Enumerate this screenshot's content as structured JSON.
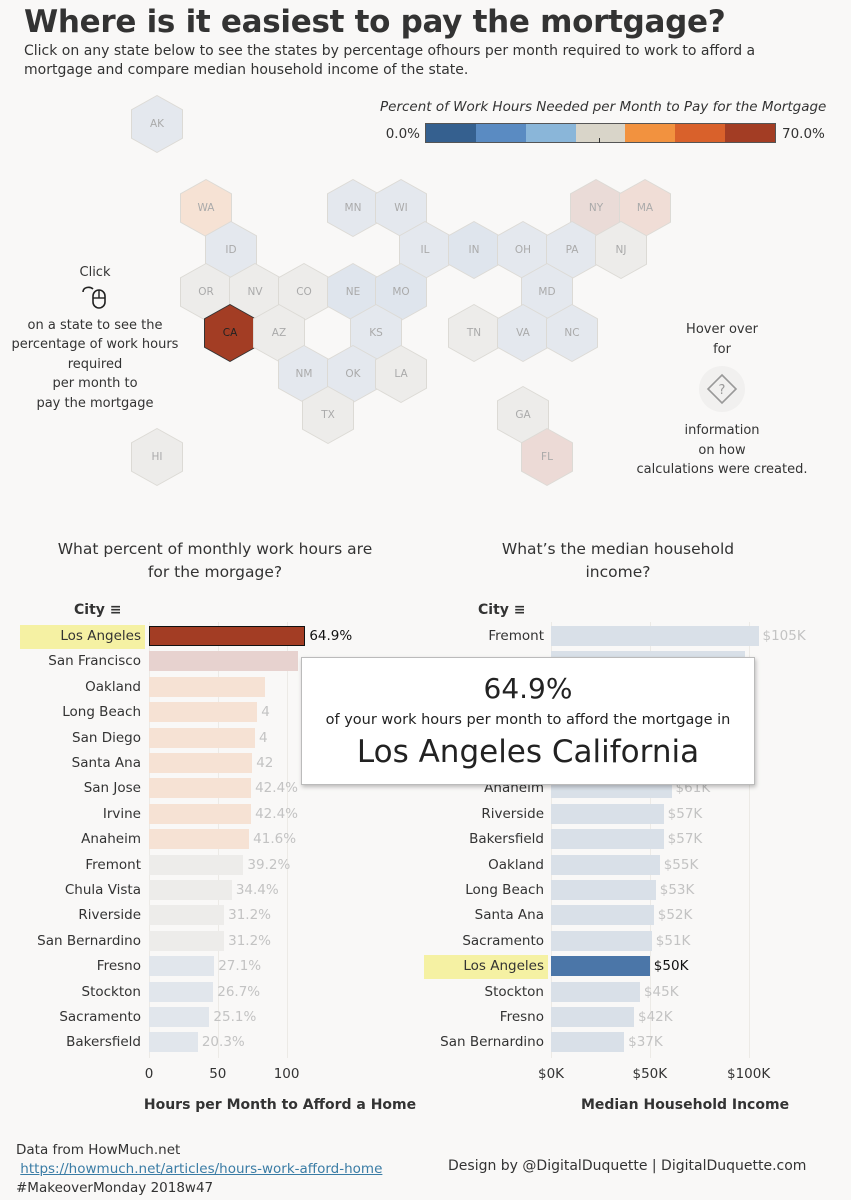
{
  "header": {
    "title": "Where is it easiest to pay the mortgage?",
    "subtitle": "Click on any state below to see the states by percentage ofhours per month required to work to afford a mortgage and compare median household income of the state."
  },
  "legend": {
    "title": "Percent of Work Hours Needed per Month to Pay for the Mortgage",
    "min_label": "0.0%",
    "max_label": "70.0%",
    "colors": [
      "#35608f",
      "#5a8bc2",
      "#8ab6d9",
      "#d9d5c9",
      "#f2923f",
      "#d9612b",
      "#a33d24"
    ]
  },
  "map": {
    "states": [
      {
        "abbr": "AK",
        "color": "#e4e8ee",
        "selected": false
      },
      {
        "abbr": "WA",
        "color": "#f6e2d4",
        "selected": false
      },
      {
        "abbr": "MN",
        "color": "#e4e8ee",
        "selected": false
      },
      {
        "abbr": "WI",
        "color": "#e4e8ee",
        "selected": false
      },
      {
        "abbr": "NY",
        "color": "#eadbd7",
        "selected": false
      },
      {
        "abbr": "MA",
        "color": "#f0ddd6",
        "selected": false
      },
      {
        "abbr": "ID",
        "color": "#e4e8ee",
        "selected": false
      },
      {
        "abbr": "IL",
        "color": "#e4e8ee",
        "selected": false
      },
      {
        "abbr": "IN",
        "color": "#dfe5ed",
        "selected": false
      },
      {
        "abbr": "OH",
        "color": "#e4e8ee",
        "selected": false
      },
      {
        "abbr": "PA",
        "color": "#e4e8ee",
        "selected": false
      },
      {
        "abbr": "NJ",
        "color": "#edecea",
        "selected": false
      },
      {
        "abbr": "OR",
        "color": "#edecea",
        "selected": false
      },
      {
        "abbr": "NV",
        "color": "#edecea",
        "selected": false
      },
      {
        "abbr": "CO",
        "color": "#edecea",
        "selected": false
      },
      {
        "abbr": "NE",
        "color": "#dfe5ed",
        "selected": false
      },
      {
        "abbr": "MO",
        "color": "#dfe5ed",
        "selected": false
      },
      {
        "abbr": "MD",
        "color": "#e4e8ee",
        "selected": false
      },
      {
        "abbr": "CA",
        "color": "#a33d24",
        "selected": true
      },
      {
        "abbr": "AZ",
        "color": "#edecea",
        "selected": false
      },
      {
        "abbr": "KS",
        "color": "#e4e8ee",
        "selected": false
      },
      {
        "abbr": "TN",
        "color": "#edecea",
        "selected": false
      },
      {
        "abbr": "VA",
        "color": "#e4e8ee",
        "selected": false
      },
      {
        "abbr": "NC",
        "color": "#e4e8ee",
        "selected": false
      },
      {
        "abbr": "NM",
        "color": "#e4e8ee",
        "selected": false
      },
      {
        "abbr": "OK",
        "color": "#e4e8ee",
        "selected": false
      },
      {
        "abbr": "LA",
        "color": "#edecea",
        "selected": false
      },
      {
        "abbr": "TX",
        "color": "#edecea",
        "selected": false
      },
      {
        "abbr": "GA",
        "color": "#edecea",
        "selected": false
      },
      {
        "abbr": "HI",
        "color": "#edecea",
        "selected": false
      },
      {
        "abbr": "FL",
        "color": "#ecdad6",
        "selected": false
      }
    ],
    "click_note": {
      "word": "Click",
      "lines": [
        "on a state to see the",
        "percentage of work hours",
        "required",
        "per month to",
        "pay the mortgage"
      ]
    },
    "hover_note": {
      "top": [
        "Hover over",
        "for"
      ],
      "bottom": [
        "information",
        "on how",
        "calculations were created."
      ]
    }
  },
  "chart_data": [
    {
      "type": "bar",
      "orientation": "horizontal",
      "title": "What percent of monthly work hours are for the morgage?",
      "dimension_label": "City",
      "xlabel": "Hours per Month to Afford a Home",
      "xlim": [
        0,
        125
      ],
      "xticks": [
        0,
        50,
        100
      ],
      "highlight": "Los Angeles",
      "categories": [
        "Los Angeles",
        "San Francisco",
        "Oakland",
        "Long Beach",
        "San Diego",
        "Santa Ana",
        "San Jose",
        "Irvine",
        "Anaheim",
        "Fremont",
        "Chula Vista",
        "Riverside",
        "San Bernardino",
        "Fresno",
        "Stockton",
        "Sacramento",
        "Bakersfield"
      ],
      "values": [
        113.6,
        108,
        84,
        78.7,
        77,
        75,
        74.2,
        74.2,
        72.8,
        68.6,
        60.2,
        54.6,
        54.6,
        47.4,
        46.7,
        43.9,
        35.5
      ],
      "labels": [
        "64.9%",
        "",
        "",
        "4",
        "4",
        "42",
        "42.4%",
        "42.4%",
        "41.6%",
        "39.2%",
        "34.4%",
        "31.2%",
        "31.2%",
        "27.1%",
        "26.7%",
        "25.1%",
        "20.3%"
      ],
      "bar_colors": [
        "#a33d24",
        "#e7d2cf",
        "#f6e2d4",
        "#f6e2d4",
        "#f6e2d4",
        "#f6e2d4",
        "#f6e2d4",
        "#f6e2d4",
        "#f6e2d4",
        "#edecea",
        "#edecea",
        "#edecea",
        "#edecea",
        "#e1e6ec",
        "#e1e6ec",
        "#e1e6ec",
        "#e1e6ec"
      ]
    },
    {
      "type": "bar",
      "orientation": "horizontal",
      "title": "What’s the median household income?",
      "dimension_label": "City",
      "xlabel": "Median Household Income",
      "xlim": [
        0,
        126000
      ],
      "xticks": [
        "$0K",
        "$50K",
        "$100K"
      ],
      "xtick_values": [
        0,
        50000,
        100000
      ],
      "highlight": "Los Angeles",
      "categories": [
        "Fremont",
        "",
        "",
        "",
        "",
        "",
        "Anaheim",
        "Riverside",
        "Bakersfield",
        "Oakland",
        "Long Beach",
        "Santa Ana",
        "Sacramento",
        "Los Angeles",
        "Stockton",
        "Fresno",
        "San Bernardino"
      ],
      "values": [
        105000,
        98000,
        0,
        0,
        0,
        0,
        61000,
        57000,
        57000,
        55000,
        53000,
        52000,
        51000,
        50000,
        45000,
        42000,
        37000
      ],
      "labels": [
        "$105K",
        "",
        "",
        "",
        "",
        "",
        "$61K",
        "$57K",
        "$57K",
        "$55K",
        "$53K",
        "$52K",
        "$51K",
        "$50K",
        "$45K",
        "$42K",
        "$37K"
      ]
    }
  ],
  "tooltip": {
    "percent": "64.9%",
    "line": "of your work hours per month to afford the mortgage in",
    "place": "Los Angeles California"
  },
  "footer": {
    "source_label": "Data from HowMuch.net",
    "source_link": "https://howmuch.net/articles/hours-work-afford-home",
    "hashtag": "#MakeoverMonday 2018w47",
    "credit": "Design by @DigitalDuquette | DigitalDuquette.com"
  }
}
